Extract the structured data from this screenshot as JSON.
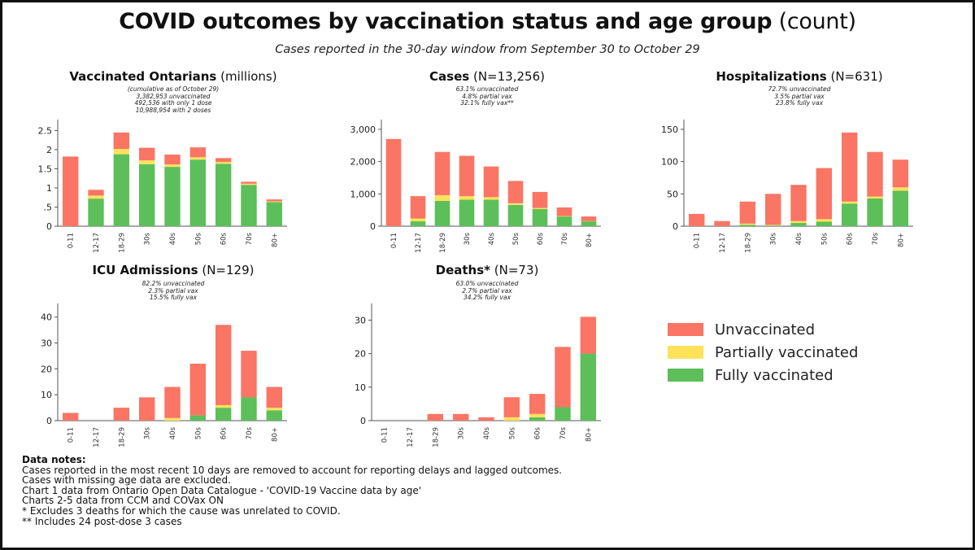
{
  "title": "COVID outcomes by vaccination status and age group",
  "title_suffix": "(count)",
  "subtitle": "Cases reported in the 30-day window from September 30 to October 29",
  "colors": {
    "unvaccinated": "#fa7564",
    "partially": "#fde25a",
    "fully": "#5cbf5a"
  },
  "legend": [
    {
      "label": "Unvaccinated",
      "color": "#fa7564"
    },
    {
      "label": "Partially vaccinated",
      "color": "#fde25a"
    },
    {
      "label": "Fully vaccinated",
      "color": "#5cbf5a"
    }
  ],
  "panels": {
    "vaccinated": {
      "title_bold": "Vaccinated Ontarians",
      "title_rest": "(millions)",
      "notes": [
        "(cumulative as of October 29)",
        "3,382,953 unvaccinated",
        "492,536 with only 1 dose",
        "10,988,954 with 2 doses"
      ]
    },
    "cases": {
      "title_bold": "Cases",
      "title_rest": "(N=13,256)",
      "notes": [
        "63.1% unvaccinated",
        "4.8% partial vax",
        "32.1% fully vax**"
      ]
    },
    "hosp": {
      "title_bold": "Hospitalizations",
      "title_rest": "(N=631)",
      "notes": [
        "72.7% unvaccinated",
        "3.5% partial vax",
        "23.8% fully vax"
      ]
    },
    "icu": {
      "title_bold": "ICU Admissions",
      "title_rest": "(N=129)",
      "notes": [
        "82.2% unvaccinated",
        "2.3% partial vax",
        "15.5% fully vax"
      ]
    },
    "deaths": {
      "title_bold": "Deaths*",
      "title_rest": "(N=73)",
      "notes": [
        "63.0% unvaccinated",
        "2.7% partial vax",
        "34.2% fully vax"
      ]
    }
  },
  "chart_data": [
    {
      "id": "vaccinated",
      "type": "bar",
      "stacked": true,
      "categories": [
        "0-11",
        "12-17",
        "18-29",
        "30s",
        "40s",
        "50s",
        "60s",
        "70s",
        "80+"
      ],
      "series": [
        {
          "name": "Fully vaccinated",
          "values": [
            0,
            0.72,
            1.88,
            1.62,
            1.55,
            1.74,
            1.63,
            1.08,
            0.63
          ]
        },
        {
          "name": "Partially vaccinated",
          "values": [
            0,
            0.08,
            0.14,
            0.1,
            0.06,
            0.06,
            0.05,
            0.03,
            0.02
          ]
        },
        {
          "name": "Unvaccinated",
          "values": [
            1.82,
            0.15,
            0.43,
            0.33,
            0.26,
            0.26,
            0.1,
            0.05,
            0.05
          ]
        }
      ],
      "ylim": [
        0,
        2.7
      ],
      "yticks": [
        0,
        0.5,
        1,
        1.5,
        2,
        2.5
      ],
      "ytick_labels": [
        "0",
        ".5",
        "1",
        "1.5",
        "2",
        "2.5"
      ]
    },
    {
      "id": "cases",
      "type": "bar",
      "stacked": true,
      "categories": [
        "0-11",
        "12-17",
        "18-29",
        "30s",
        "40s",
        "50s",
        "60s",
        "70s",
        "80+"
      ],
      "series": [
        {
          "name": "Fully vaccinated",
          "values": [
            0,
            150,
            780,
            820,
            820,
            660,
            530,
            300,
            150
          ]
        },
        {
          "name": "Partially vaccinated",
          "values": [
            0,
            90,
            180,
            110,
            80,
            50,
            30,
            15,
            10
          ]
        },
        {
          "name": "Unvaccinated",
          "values": [
            2700,
            690,
            1340,
            1250,
            950,
            690,
            500,
            265,
            140
          ]
        }
      ],
      "ylim": [
        0,
        3200
      ],
      "yticks": [
        0,
        1000,
        2000,
        3000
      ],
      "ytick_labels": [
        "0",
        "1,000",
        "2,000",
        "3,000"
      ]
    },
    {
      "id": "hosp",
      "type": "bar",
      "stacked": true,
      "categories": [
        "0-11",
        "12-17",
        "18-29",
        "30s",
        "40s",
        "50s",
        "60s",
        "70s",
        "80+"
      ],
      "series": [
        {
          "name": "Fully vaccinated",
          "values": [
            0,
            0,
            2,
            1,
            5,
            7,
            35,
            43,
            55
          ]
        },
        {
          "name": "Partially vaccinated",
          "values": [
            0,
            0,
            2,
            1,
            3,
            4,
            3,
            3,
            5
          ]
        },
        {
          "name": "Unvaccinated",
          "values": [
            19,
            8,
            34,
            48,
            56,
            79,
            107,
            69,
            43
          ]
        }
      ],
      "ylim": [
        0,
        160
      ],
      "yticks": [
        0,
        50,
        100,
        150
      ],
      "ytick_labels": [
        "0",
        "50",
        "100",
        "150"
      ]
    },
    {
      "id": "icu",
      "type": "bar",
      "stacked": true,
      "categories": [
        "0-11",
        "12-17",
        "18-29",
        "30s",
        "40s",
        "50s",
        "60s",
        "70s",
        "80+"
      ],
      "series": [
        {
          "name": "Fully vaccinated",
          "values": [
            0,
            0,
            0,
            0,
            0,
            2,
            5,
            9,
            4
          ]
        },
        {
          "name": "Partially vaccinated",
          "values": [
            0,
            0,
            0,
            0,
            1,
            0,
            1,
            0,
            1
          ]
        },
        {
          "name": "Unvaccinated",
          "values": [
            3,
            0,
            5,
            9,
            12,
            20,
            31,
            18,
            8
          ]
        }
      ],
      "ylim": [
        0,
        44
      ],
      "yticks": [
        0,
        10,
        20,
        30,
        40
      ],
      "ytick_labels": [
        "0",
        "10",
        "20",
        "30",
        "40"
      ]
    },
    {
      "id": "deaths",
      "type": "bar",
      "stacked": true,
      "categories": [
        "0-11",
        "12-17",
        "18-29",
        "30s",
        "40s",
        "50s",
        "60s",
        "70s",
        "80+"
      ],
      "series": [
        {
          "name": "Fully vaccinated",
          "values": [
            0,
            0,
            0,
            0,
            0,
            0,
            1,
            4,
            20
          ]
        },
        {
          "name": "Partially vaccinated",
          "values": [
            0,
            0,
            0,
            0,
            0,
            1,
            1,
            0,
            0
          ]
        },
        {
          "name": "Unvaccinated",
          "values": [
            0,
            0,
            2,
            2,
            1,
            6,
            6,
            18,
            11
          ]
        }
      ],
      "ylim": [
        0,
        34
      ],
      "yticks": [
        0,
        10,
        20,
        30
      ],
      "ytick_labels": [
        "0",
        "10",
        "20",
        "30"
      ]
    }
  ],
  "data_notes": {
    "heading": "Data notes:",
    "lines": [
      "Cases reported in the most recent 10 days are removed to account for reporting delays and lagged outcomes.",
      "Cases with missing age data are excluded.",
      "Chart 1 data from Ontario Open Data Catalogue - 'COVID-19 Vaccine data by age'",
      "Charts 2-5 data from CCM and COVax ON",
      "* Excludes 3 deaths for which the cause was unrelated to COVID.",
      "** Includes 24 post-dose 3 cases"
    ]
  }
}
